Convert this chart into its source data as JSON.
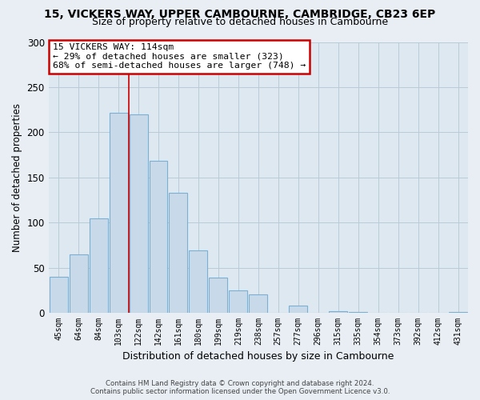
{
  "title": "15, VICKERS WAY, UPPER CAMBOURNE, CAMBRIDGE, CB23 6EP",
  "subtitle": "Size of property relative to detached houses in Cambourne",
  "xlabel": "Distribution of detached houses by size in Cambourne",
  "ylabel": "Number of detached properties",
  "bar_color": "#c8daea",
  "bar_edge_color": "#7ab0d4",
  "categories": [
    "45sqm",
    "64sqm",
    "84sqm",
    "103sqm",
    "122sqm",
    "142sqm",
    "161sqm",
    "180sqm",
    "199sqm",
    "219sqm",
    "238sqm",
    "257sqm",
    "277sqm",
    "296sqm",
    "315sqm",
    "335sqm",
    "354sqm",
    "373sqm",
    "392sqm",
    "412sqm",
    "431sqm"
  ],
  "values": [
    40,
    65,
    105,
    222,
    220,
    168,
    133,
    69,
    39,
    25,
    20,
    0,
    8,
    0,
    2,
    1,
    0,
    0,
    0,
    0,
    1
  ],
  "ylim": [
    0,
    300
  ],
  "yticks": [
    0,
    50,
    100,
    150,
    200,
    250,
    300
  ],
  "annotation_title": "15 VICKERS WAY: 114sqm",
  "annotation_line1": "← 29% of detached houses are smaller (323)",
  "annotation_line2": "68% of semi-detached houses are larger (748) →",
  "property_bar_index": 3,
  "property_line_color": "#cc0000",
  "footer_line1": "Contains HM Land Registry data © Crown copyright and database right 2024.",
  "footer_line2": "Contains public sector information licensed under the Open Government Licence v3.0.",
  "background_color": "#e8eef4",
  "plot_bg_color": "#dde8f0",
  "grid_color": "#b8ccd8",
  "annotation_box_color": "#cc0000",
  "title_fontsize": 10,
  "subtitle_fontsize": 9
}
